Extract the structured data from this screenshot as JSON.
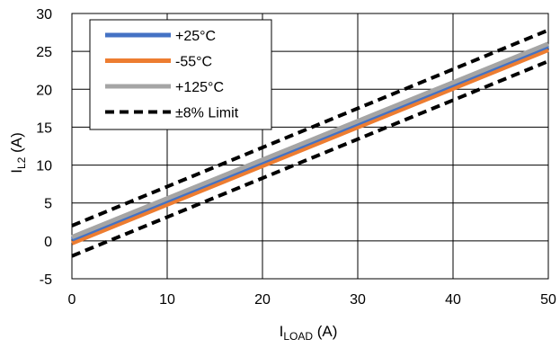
{
  "chart_data": {
    "type": "line",
    "xlabel": {
      "main": "I",
      "sub": "LOAD",
      "unit": " (A)"
    },
    "ylabel": {
      "main": "I",
      "sub": "L2",
      "unit": " (A)"
    },
    "xlim": [
      0,
      50
    ],
    "ylim": [
      -5,
      30
    ],
    "xticks": [
      0,
      10,
      20,
      30,
      40,
      50
    ],
    "yticks": [
      -5,
      0,
      5,
      10,
      15,
      20,
      25,
      30
    ],
    "grid": true,
    "legend_position": "top-left",
    "series": [
      {
        "name": "+25°C",
        "color": "#4472C4",
        "style": "solid",
        "x": [
          0,
          50
        ],
        "y": [
          0.2,
          25.7
        ]
      },
      {
        "name": "-55°C",
        "color": "#ED7D31",
        "style": "solid",
        "x": [
          0,
          50
        ],
        "y": [
          -0.3,
          25.2
        ]
      },
      {
        "name": "+125°C",
        "color": "#A5A5A5",
        "style": "solid",
        "x": [
          0,
          50
        ],
        "y": [
          0.5,
          26.0
        ]
      },
      {
        "name": "±8% Limit",
        "color": "#000000",
        "style": "dashed",
        "x": [
          0,
          50
        ],
        "y": [
          2.0,
          27.8
        ]
      },
      {
        "name": "",
        "color": "#000000",
        "style": "dashed",
        "x": [
          0,
          50
        ],
        "y": [
          -2.0,
          23.7
        ]
      }
    ]
  }
}
